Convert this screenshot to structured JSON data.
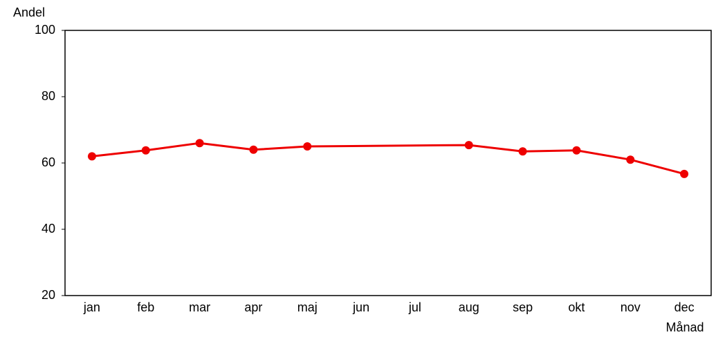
{
  "chart_data": {
    "type": "line",
    "x_label": "Månad",
    "y_label": "Andel",
    "categories": [
      "jan",
      "feb",
      "mar",
      "apr",
      "maj",
      "jun",
      "jul",
      "aug",
      "sep",
      "okt",
      "nov",
      "dec"
    ],
    "series": [
      {
        "color": "#ee0000",
        "values": [
          62,
          63.8,
          66,
          64,
          65,
          null,
          null,
          65.4,
          63.5,
          63.8,
          61,
          56.7
        ]
      }
    ],
    "connect_gaps": true,
    "ylim": [
      20,
      100
    ],
    "yticks": [
      20,
      40,
      60,
      80,
      100
    ],
    "grid": false
  }
}
